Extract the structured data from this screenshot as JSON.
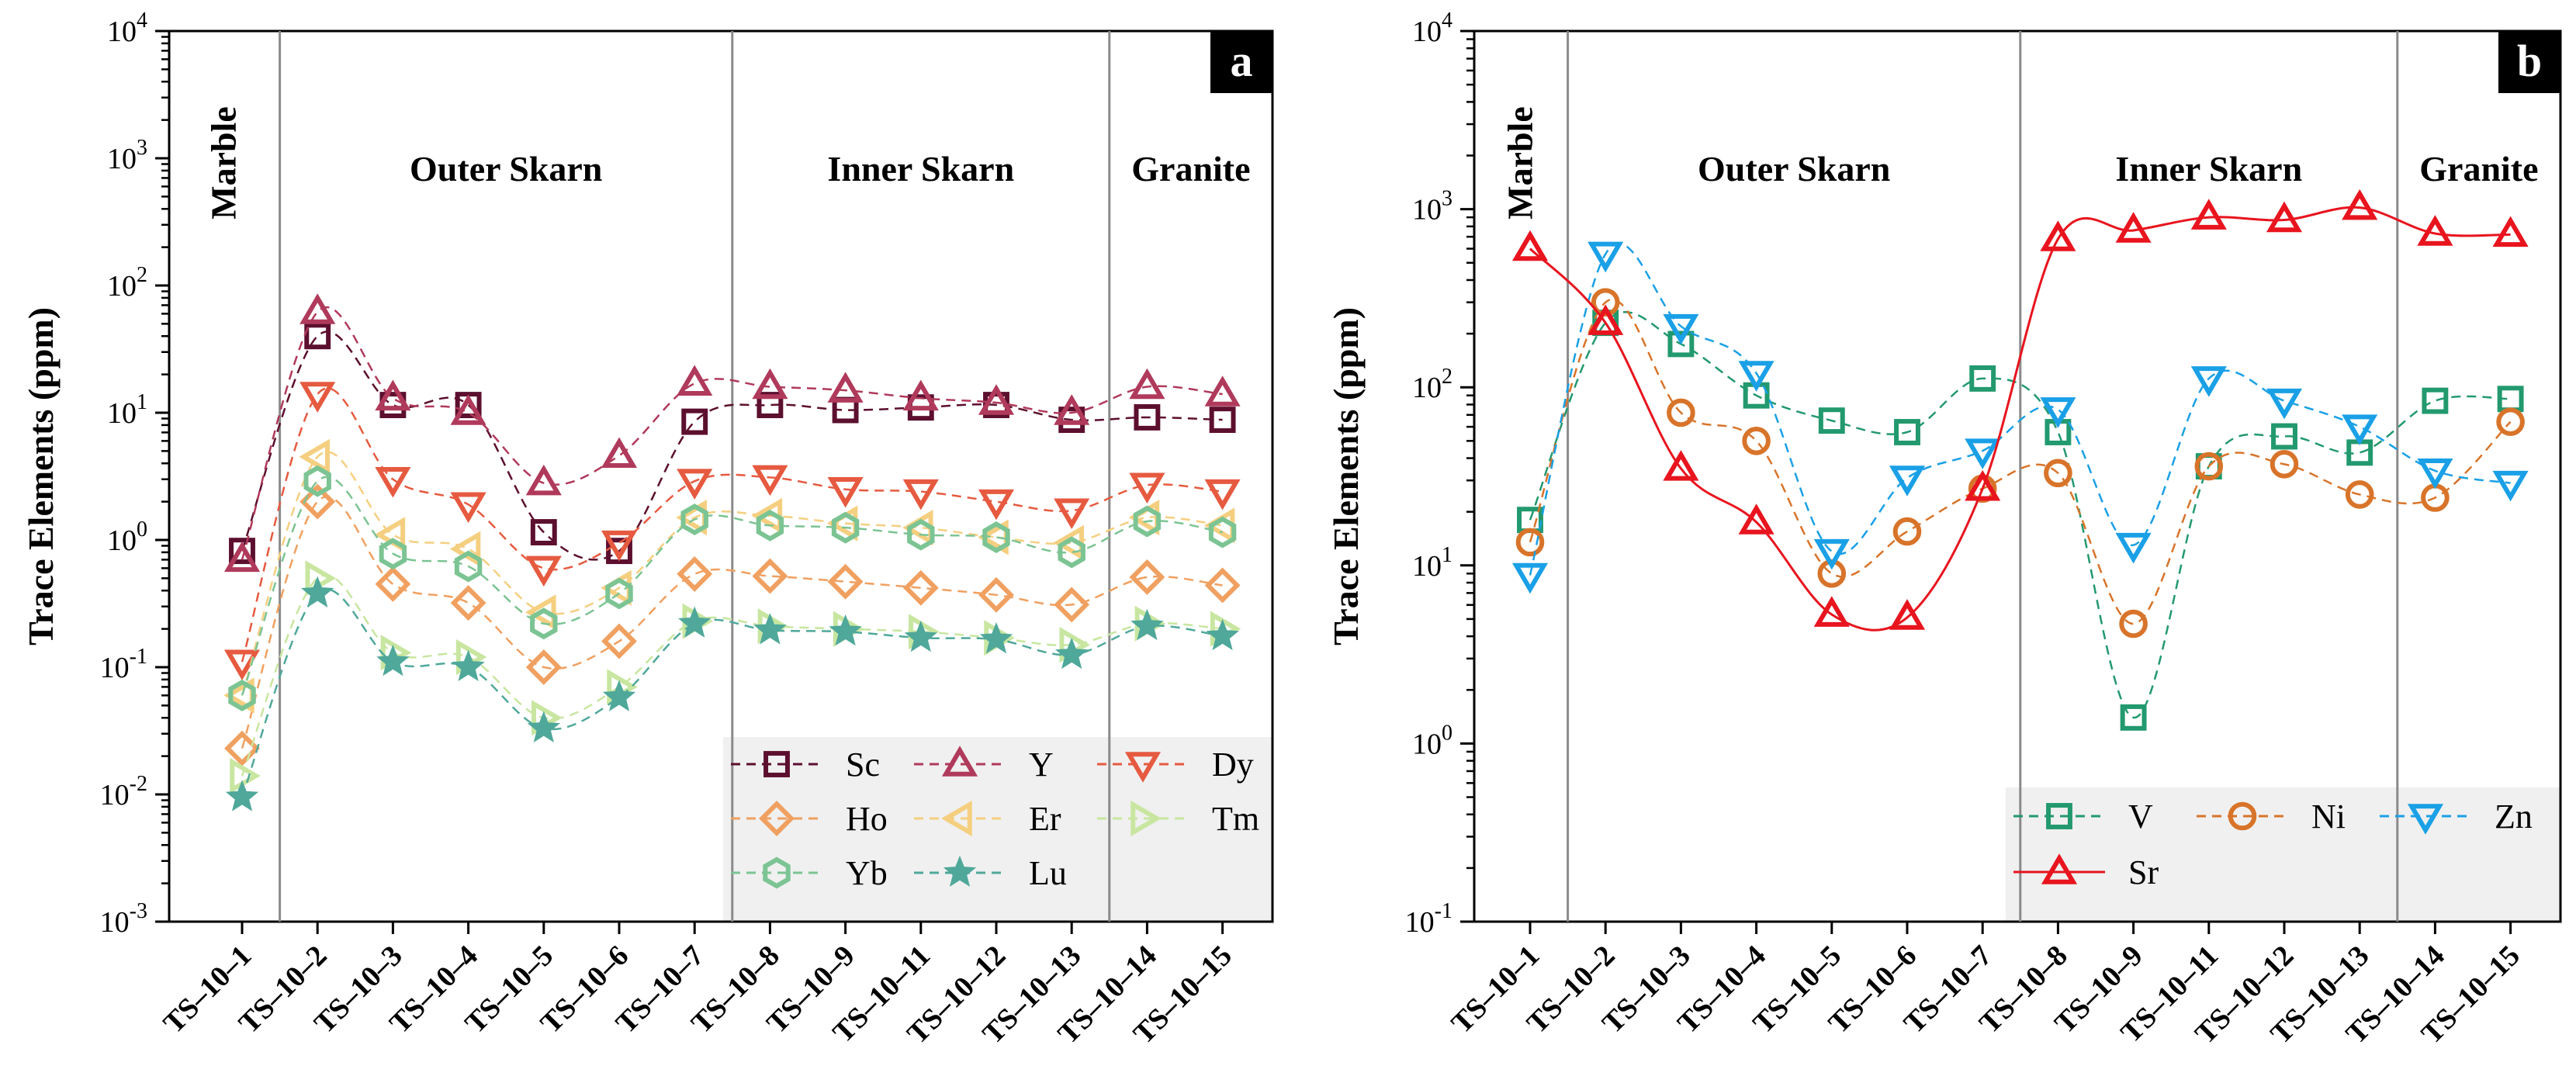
{
  "chart_data": [
    {
      "panel": "a",
      "type": "line",
      "y_scale": "log",
      "ylabel": "Trace Elements (ppm)",
      "ylim_exp": [
        -3,
        4
      ],
      "y_ticks": [
        {
          "b": "10",
          "e": "-3"
        },
        {
          "b": "10",
          "e": "-2"
        },
        {
          "b": "10",
          "e": "-1"
        },
        {
          "b": "10",
          "e": "0"
        },
        {
          "b": "10",
          "e": "1"
        },
        {
          "b": "10",
          "e": "2"
        },
        {
          "b": "10",
          "e": "3"
        },
        {
          "b": "10",
          "e": "4"
        }
      ],
      "categories": [
        "TS–10–1",
        "TS–10–2",
        "TS–10–3",
        "TS–10–4",
        "TS–10–5",
        "TS–10–6",
        "TS–10–7",
        "TS–10–8",
        "TS–10–9",
        "TS–10–11",
        "TS–10–12",
        "TS–10–13",
        "TS–10–14",
        "TS–10–15"
      ],
      "zones": [
        {
          "label": "Marble",
          "start": 0,
          "end": 0,
          "vertical": true
        },
        {
          "label": "Outer Skarn",
          "start": 1,
          "end": 6
        },
        {
          "label": "Inner Skarn",
          "start": 7,
          "end": 11
        },
        {
          "label": "Granite",
          "start": 12,
          "end": 13
        }
      ],
      "dividers_after": [
        0,
        6,
        11
      ],
      "series": [
        {
          "name": "Sc",
          "color": "#5c0f2e",
          "marker": "square",
          "values": [
            0.82,
            40,
            11.5,
            11.5,
            1.15,
            0.82,
            8.5,
            11.5,
            10.5,
            11,
            11.5,
            8.8,
            9.2,
            8.8
          ]
        },
        {
          "name": "Y",
          "color": "#b03a5b",
          "marker": "triangle-up",
          "values": [
            0.7,
            62,
            13,
            10,
            2.8,
            4.6,
            17,
            16,
            15,
            13,
            12,
            10,
            16,
            14
          ]
        },
        {
          "name": "Dy",
          "color": "#e65a40",
          "marker": "triangle-down",
          "values": [
            0.11,
            14,
            3,
            1.9,
            0.6,
            0.95,
            2.9,
            3.1,
            2.5,
            2.4,
            2,
            1.7,
            2.7,
            2.4
          ]
        },
        {
          "name": "Ho",
          "color": "#f0a060",
          "marker": "diamond",
          "values": [
            0.023,
            2,
            0.45,
            0.32,
            0.1,
            0.16,
            0.54,
            0.52,
            0.47,
            0.42,
            0.37,
            0.31,
            0.51,
            0.44
          ]
        },
        {
          "name": "Er",
          "color": "#f5cf80",
          "marker": "triangle-left",
          "values": [
            0.06,
            4.5,
            1.1,
            0.85,
            0.27,
            0.42,
            1.5,
            1.55,
            1.35,
            1.25,
            1.05,
            0.95,
            1.5,
            1.3
          ]
        },
        {
          "name": "Tm",
          "color": "#c8e6a0",
          "marker": "triangle-right",
          "values": [
            0.014,
            0.5,
            0.13,
            0.12,
            0.04,
            0.07,
            0.23,
            0.21,
            0.2,
            0.19,
            0.17,
            0.15,
            0.22,
            0.2
          ]
        },
        {
          "name": "Yb",
          "color": "#7cc493",
          "marker": "hexagon",
          "values": [
            0.06,
            2.9,
            0.78,
            0.62,
            0.22,
            0.38,
            1.45,
            1.3,
            1.25,
            1.1,
            1.05,
            0.8,
            1.4,
            1.15
          ]
        },
        {
          "name": "Lu",
          "color": "#4fa89a",
          "marker": "star",
          "values": [
            0.0095,
            0.38,
            0.11,
            0.1,
            0.033,
            0.058,
            0.22,
            0.195,
            0.19,
            0.17,
            0.165,
            0.125,
            0.21,
            0.175
          ]
        }
      ]
    },
    {
      "panel": "b",
      "type": "line",
      "y_scale": "log",
      "ylabel": "Trace Elements (ppm)",
      "ylim_exp": [
        -1,
        4
      ],
      "y_ticks": [
        {
          "b": "10",
          "e": "-1"
        },
        {
          "b": "10",
          "e": "0"
        },
        {
          "b": "10",
          "e": "1"
        },
        {
          "b": "10",
          "e": "2"
        },
        {
          "b": "10",
          "e": "3"
        },
        {
          "b": "10",
          "e": "4"
        }
      ],
      "categories": [
        "TS–10–1",
        "TS–10–2",
        "TS–10–3",
        "TS–10–4",
        "TS–10–5",
        "TS–10–6",
        "TS–10–7",
        "TS–10–8",
        "TS–10–9",
        "TS–10–11",
        "TS–10–12",
        "TS–10–13",
        "TS–10–14",
        "TS–10–15"
      ],
      "zones": [
        {
          "label": "Marble",
          "start": 0,
          "end": 0,
          "vertical": true
        },
        {
          "label": "Outer Skarn",
          "start": 1,
          "end": 6
        },
        {
          "label": "Inner Skarn",
          "start": 7,
          "end": 11
        },
        {
          "label": "Granite",
          "start": 12,
          "end": 13
        }
      ],
      "dividers_after": [
        0,
        6,
        11
      ],
      "series": [
        {
          "name": "V",
          "color": "#22996e",
          "marker": "square",
          "dash": true,
          "values": [
            18,
            230,
            175,
            90,
            65,
            56,
            112,
            56,
            1.4,
            36,
            53,
            43,
            84,
            86
          ]
        },
        {
          "name": "Ni",
          "color": "#d8742a",
          "marker": "circle",
          "dash": true,
          "values": [
            13.5,
            300,
            72,
            50,
            9,
            15.5,
            27,
            33,
            4.7,
            36,
            37,
            25,
            24,
            64
          ]
        },
        {
          "name": "Zn",
          "color": "#1aa0e6",
          "marker": "triangle-down",
          "dash": true,
          "values": [
            8.8,
            560,
            220,
            120,
            12,
            31,
            44,
            75,
            13,
            112,
            84,
            60,
            34,
            29
          ]
        },
        {
          "name": "Sr",
          "color": "#e8141e",
          "marker": "triangle-up",
          "dash": false,
          "values": [
            600,
            230,
            35,
            17.5,
            5.3,
            5.1,
            27,
            680,
            760,
            900,
            870,
            1020,
            730,
            720
          ]
        }
      ]
    }
  ]
}
